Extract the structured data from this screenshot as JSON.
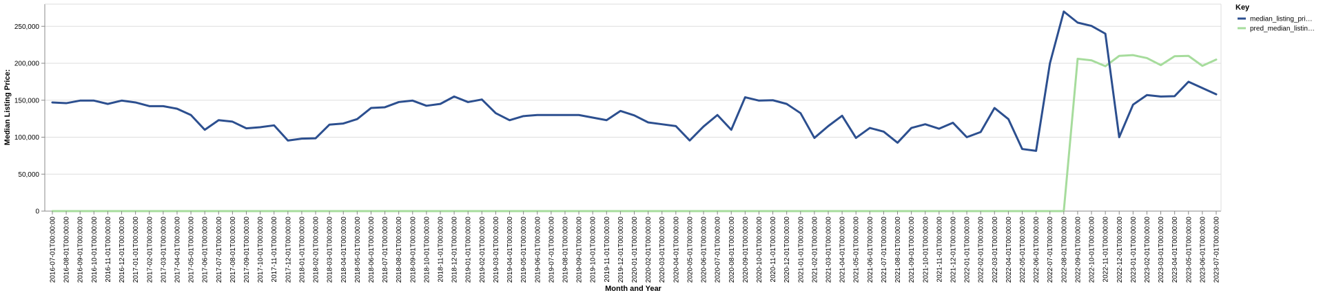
{
  "chart_data": {
    "type": "line",
    "xlabel": "Month and Year",
    "ylabel": "Median Listing Price:",
    "ylim": [
      0,
      280000
    ],
    "yticks": [
      0,
      50000,
      100000,
      150000,
      200000,
      250000
    ],
    "ytick_labels": [
      "0",
      "50,000",
      "100,000",
      "150,000",
      "200,000",
      "250,000"
    ],
    "grid": true,
    "legend_title": "Key",
    "legend_position": "top-right",
    "x": [
      "2016-07-01T00:00:00",
      "2016-08-01T00:00:00",
      "2016-09-01T00:00:00",
      "2016-10-01T00:00:00",
      "2016-11-01T00:00:00",
      "2016-12-01T00:00:00",
      "2017-01-01T00:00:00",
      "2017-02-01T00:00:00",
      "2017-03-01T00:00:00",
      "2017-04-01T00:00:00",
      "2017-05-01T00:00:00",
      "2017-06-01T00:00:00",
      "2017-07-01T00:00:00",
      "2017-08-01T00:00:00",
      "2017-09-01T00:00:00",
      "2017-10-01T00:00:00",
      "2017-11-01T00:00:00",
      "2017-12-01T00:00:00",
      "2018-01-01T00:00:00",
      "2018-02-01T00:00:00",
      "2018-03-01T00:00:00",
      "2018-04-01T00:00:00",
      "2018-05-01T00:00:00",
      "2018-06-01T00:00:00",
      "2018-07-01T00:00:00",
      "2018-08-01T00:00:00",
      "2018-09-01T00:00:00",
      "2018-10-01T00:00:00",
      "2018-11-01T00:00:00",
      "2018-12-01T00:00:00",
      "2019-01-01T00:00:00",
      "2019-02-01T00:00:00",
      "2019-03-01T00:00:00",
      "2019-04-01T00:00:00",
      "2019-05-01T00:00:00",
      "2019-06-01T00:00:00",
      "2019-07-01T00:00:00",
      "2019-08-01T00:00:00",
      "2019-09-01T00:00:00",
      "2019-10-01T00:00:00",
      "2019-11-01T00:00:00",
      "2019-12-01T00:00:00",
      "2020-01-01T00:00:00",
      "2020-02-01T00:00:00",
      "2020-03-01T00:00:00",
      "2020-04-01T00:00:00",
      "2020-05-01T00:00:00",
      "2020-06-01T00:00:00",
      "2020-07-01T00:00:00",
      "2020-08-01T00:00:00",
      "2020-09-01T00:00:00",
      "2020-10-01T00:00:00",
      "2020-11-01T00:00:00",
      "2020-12-01T00:00:00",
      "2021-01-01T00:00:00",
      "2021-02-01T00:00:00",
      "2021-03-01T00:00:00",
      "2021-04-01T00:00:00",
      "2021-05-01T00:00:00",
      "2021-06-01T00:00:00",
      "2021-07-01T00:00:00",
      "2021-08-01T00:00:00",
      "2021-09-01T00:00:00",
      "2021-10-01T00:00:00",
      "2021-11-01T00:00:00",
      "2021-12-01T00:00:00",
      "2022-01-01T00:00:00",
      "2022-02-01T00:00:00",
      "2022-03-01T00:00:00",
      "2022-04-01T00:00:00",
      "2022-05-01T00:00:00",
      "2022-06-01T00:00:00",
      "2022-07-01T00:00:00",
      "2022-08-01T00:00:00",
      "2022-09-01T00:00:00",
      "2022-10-01T00:00:00",
      "2022-11-01T00:00:00",
      "2022-12-01T00:00:00",
      "2023-01-01T00:00:00",
      "2023-02-01T00:00:00",
      "2023-03-01T00:00:00",
      "2023-04-01T00:00:00",
      "2023-05-01T00:00:00",
      "2023-06-01T00:00:00",
      "2023-07-01T00:00:00"
    ],
    "series": [
      {
        "name": "median_listing_pri…",
        "color": "#2c4f8f",
        "values": [
          147000,
          146000,
          149500,
          149500,
          145000,
          149500,
          147000,
          142000,
          142000,
          138500,
          130000,
          110000,
          123000,
          121000,
          112000,
          113500,
          116000,
          95500,
          98000,
          98500,
          117000,
          118500,
          124500,
          139500,
          140500,
          147500,
          149500,
          142500,
          145000,
          155000,
          147500,
          151000,
          132500,
          123000,
          128500,
          130000,
          130000,
          130000,
          130000,
          126500,
          123000,
          135500,
          129500,
          120000,
          117500,
          115000,
          95500,
          114500,
          130000,
          110000,
          154000,
          149500,
          150000,
          145000,
          132500,
          99000,
          115000,
          129000,
          99000,
          112500,
          107500,
          92500,
          112500,
          117500,
          111500,
          119500,
          100000,
          107000,
          139500,
          124500,
          84000,
          81500,
          200000,
          270000,
          255000,
          250500,
          240000,
          100000,
          144000,
          157000,
          155000,
          155500,
          175000,
          166500,
          158000
        ]
      },
      {
        "name": "pred_median_listin…",
        "color": "#a6dc9c",
        "values": [
          0,
          0,
          0,
          0,
          0,
          0,
          0,
          0,
          0,
          0,
          0,
          0,
          0,
          0,
          0,
          0,
          0,
          0,
          0,
          0,
          0,
          0,
          0,
          0,
          0,
          0,
          0,
          0,
          0,
          0,
          0,
          0,
          0,
          0,
          0,
          0,
          0,
          0,
          0,
          0,
          0,
          0,
          0,
          0,
          0,
          0,
          0,
          0,
          0,
          0,
          0,
          0,
          0,
          0,
          0,
          0,
          0,
          0,
          0,
          0,
          0,
          0,
          0,
          0,
          0,
          0,
          0,
          0,
          0,
          0,
          0,
          0,
          0,
          0,
          206000,
          204000,
          196000,
          210000,
          211000,
          207000,
          197500,
          209500,
          210000,
          196500,
          205000
        ]
      }
    ]
  }
}
